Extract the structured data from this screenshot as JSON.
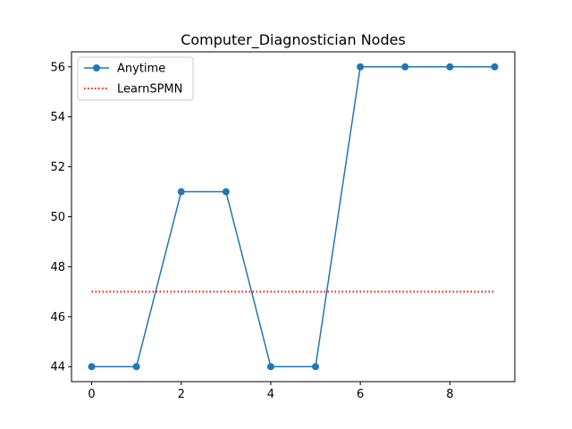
{
  "chart_data": {
    "type": "line",
    "title": "Computer_Diagnostician Nodes",
    "xlabel": "",
    "ylabel": "",
    "xlim": [
      -0.45,
      9.45
    ],
    "ylim": [
      43.4,
      56.6
    ],
    "xticks": [
      0,
      2,
      4,
      6,
      8
    ],
    "yticks": [
      44,
      46,
      48,
      50,
      52,
      54,
      56
    ],
    "grid": false,
    "legend_position": "top-left",
    "series": [
      {
        "name": "Anytime",
        "style": "line-markers",
        "color": "#1f77b4",
        "x": [
          0,
          1,
          2,
          3,
          4,
          5,
          6,
          7,
          8,
          9
        ],
        "y": [
          44,
          44,
          51,
          51,
          44,
          44,
          56,
          56,
          56,
          56
        ]
      },
      {
        "name": "LearnSPMN",
        "style": "dotted",
        "color": "#ff0000",
        "x": [
          0,
          9
        ],
        "y": [
          47,
          47
        ]
      }
    ]
  }
}
